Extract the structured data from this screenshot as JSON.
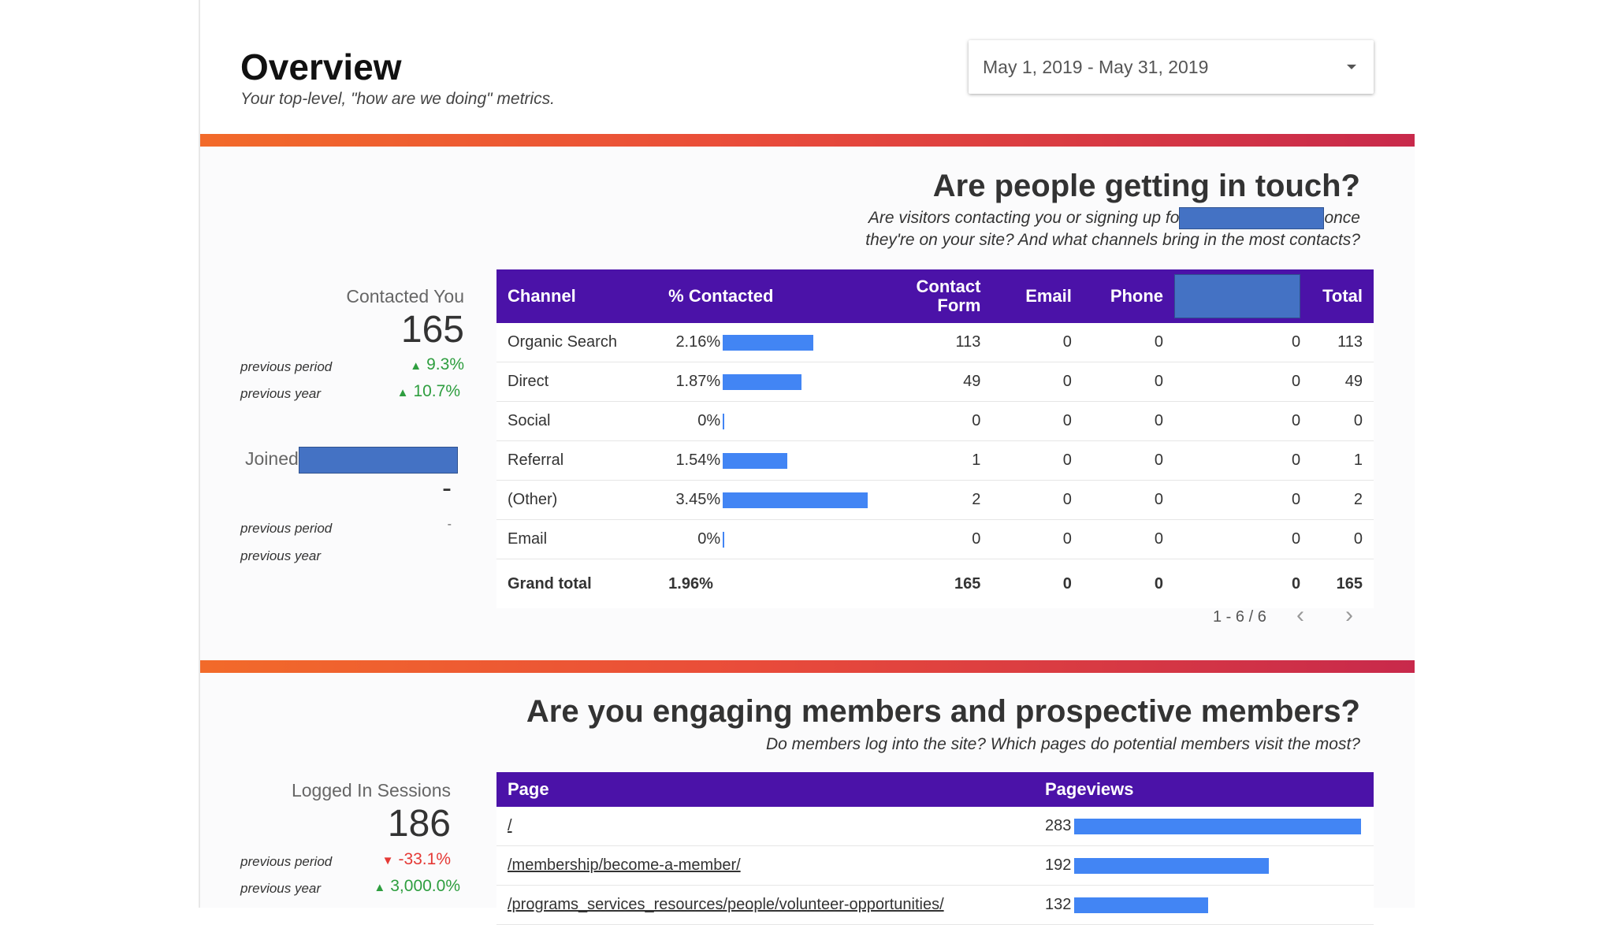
{
  "header": {
    "title": "Overview",
    "subtitle": "Your top-level, \"how are we doing\" metrics.",
    "date_range": "May 1, 2019 - May 31, 2019"
  },
  "contact_section": {
    "heading": "Are people getting in touch?",
    "desc_line1_a": "Are visitors contacting you or signing up fo",
    "desc_line1_b": "once",
    "desc_line2": "they're on your site? And what channels bring in the most contacts?",
    "kpi_contacted": {
      "label": "Contacted You",
      "value": "165",
      "prev_period_label": "previous period",
      "prev_period_value": "9.3%",
      "prev_period_dir": "up",
      "prev_year_label": "previous year",
      "prev_year_value": "10.7%",
      "prev_year_dir": "up"
    },
    "kpi_joined": {
      "label": "Joined",
      "value": "-",
      "prev_period_label": "previous period",
      "prev_period_value": "-",
      "prev_year_label": "previous year",
      "prev_year_value": ""
    },
    "table": {
      "columns": [
        "Channel",
        "% Contacted",
        "Contact Form",
        "Email",
        "Phone",
        "",
        "Total"
      ],
      "rows": [
        {
          "channel": "Organic Search",
          "pct": "2.16%",
          "pct_value": 2.16,
          "contact_form": "113",
          "email": "0",
          "phone": "0",
          "redacted": "0",
          "total": "113"
        },
        {
          "channel": "Direct",
          "pct": "1.87%",
          "pct_value": 1.87,
          "contact_form": "49",
          "email": "0",
          "phone": "0",
          "redacted": "0",
          "total": "49"
        },
        {
          "channel": "Social",
          "pct": "0%",
          "pct_value": 0,
          "contact_form": "0",
          "email": "0",
          "phone": "0",
          "redacted": "0",
          "total": "0"
        },
        {
          "channel": "Referral",
          "pct": "1.54%",
          "pct_value": 1.54,
          "contact_form": "1",
          "email": "0",
          "phone": "0",
          "redacted": "0",
          "total": "1"
        },
        {
          "channel": "(Other)",
          "pct": "3.45%",
          "pct_value": 3.45,
          "contact_form": "2",
          "email": "0",
          "phone": "0",
          "redacted": "0",
          "total": "2"
        },
        {
          "channel": "Email",
          "pct": "0%",
          "pct_value": 0,
          "contact_form": "0",
          "email": "0",
          "phone": "0",
          "redacted": "0",
          "total": "0"
        }
      ],
      "grand_total": {
        "label": "Grand total",
        "pct": "1.96%",
        "contact_form": "165",
        "email": "0",
        "phone": "0",
        "redacted": "0",
        "total": "165"
      },
      "pagination": "1 - 6 / 6"
    }
  },
  "engage_section": {
    "heading": "Are you engaging members and prospective members?",
    "desc": "Do members log into the site? Which pages do potential members visit the most?",
    "kpi_logged_in": {
      "label": "Logged In Sessions",
      "value": "186",
      "prev_period_label": "previous period",
      "prev_period_value": "-33.1%",
      "prev_period_dir": "down",
      "prev_year_label": "previous year",
      "prev_year_value": "3,000.0%",
      "prev_year_dir": "up"
    },
    "table": {
      "columns": [
        "Page",
        "Pageviews"
      ],
      "rows": [
        {
          "page": "/",
          "views": "283",
          "views_value": 283
        },
        {
          "page": "/membership/become-a-member/",
          "views": "192",
          "views_value": 192
        },
        {
          "page": "/programs_services_resources/people/volunteer-opportunities/",
          "views": "132",
          "views_value": 132
        }
      ]
    }
  },
  "colors": {
    "header_purple": "#4b12a8",
    "bar_blue": "#4285f4",
    "band_start": "#f26a2a",
    "band_end": "#c8294b",
    "redaction_blue": "#4472c4",
    "up_green": "#2e9e3f",
    "down_red": "#e53935"
  }
}
